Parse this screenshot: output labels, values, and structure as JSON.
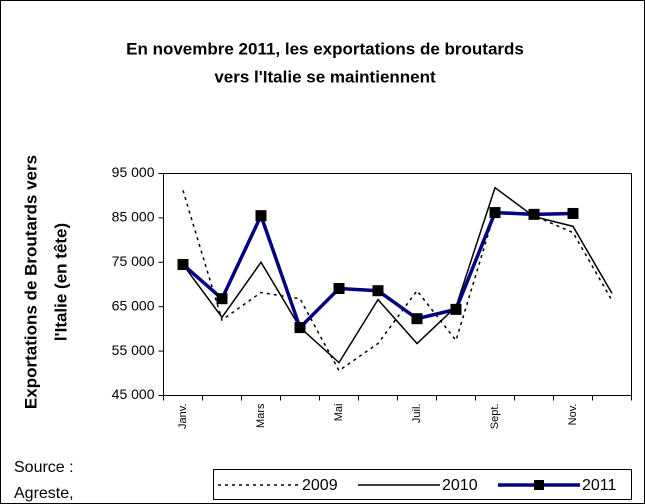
{
  "chart_data": {
    "type": "line",
    "title": [
      "En novembre 2011, les exportations de broutards",
      "vers l'Italie se maintiennent"
    ],
    "y_label": [
      "Exportations de Broutards vers",
      "l'Italie (en tête)"
    ],
    "source": [
      "Source :",
      "Agreste,"
    ],
    "categories": [
      "Janv.",
      null,
      "Mars",
      null,
      "Mai",
      null,
      "Juil.",
      null,
      "Sept.",
      null,
      "Nov.",
      null
    ],
    "series": [
      {
        "name": "2009",
        "color": "#000000",
        "style": "dotted",
        "values": [
          91200,
          62000,
          68200,
          66800,
          50600,
          56700,
          68600,
          57400,
          86400,
          85500,
          81700,
          66400
        ]
      },
      {
        "name": "2010",
        "color": "#000000",
        "style": "solid",
        "values": [
          74500,
          62600,
          75000,
          60300,
          52400,
          66600,
          56700,
          65000,
          91800,
          85300,
          83100,
          68000
        ]
      },
      {
        "name": "2011",
        "color": "#000080",
        "style": "marker",
        "values": [
          74500,
          66800,
          85500,
          60300,
          69100,
          68600,
          62300,
          64400,
          86200,
          85800,
          86000,
          null
        ]
      }
    ],
    "ylim": [
      45000,
      95000
    ],
    "yticks": [
      {
        "value": 45000,
        "label": "45 000"
      },
      {
        "value": 55000,
        "label": "55 000"
      },
      {
        "value": 65000,
        "label": "65 000"
      },
      {
        "value": 75000,
        "label": "75 000"
      },
      {
        "value": 85000,
        "label": "85 000"
      },
      {
        "value": 95000,
        "label": "95 000"
      }
    ]
  }
}
